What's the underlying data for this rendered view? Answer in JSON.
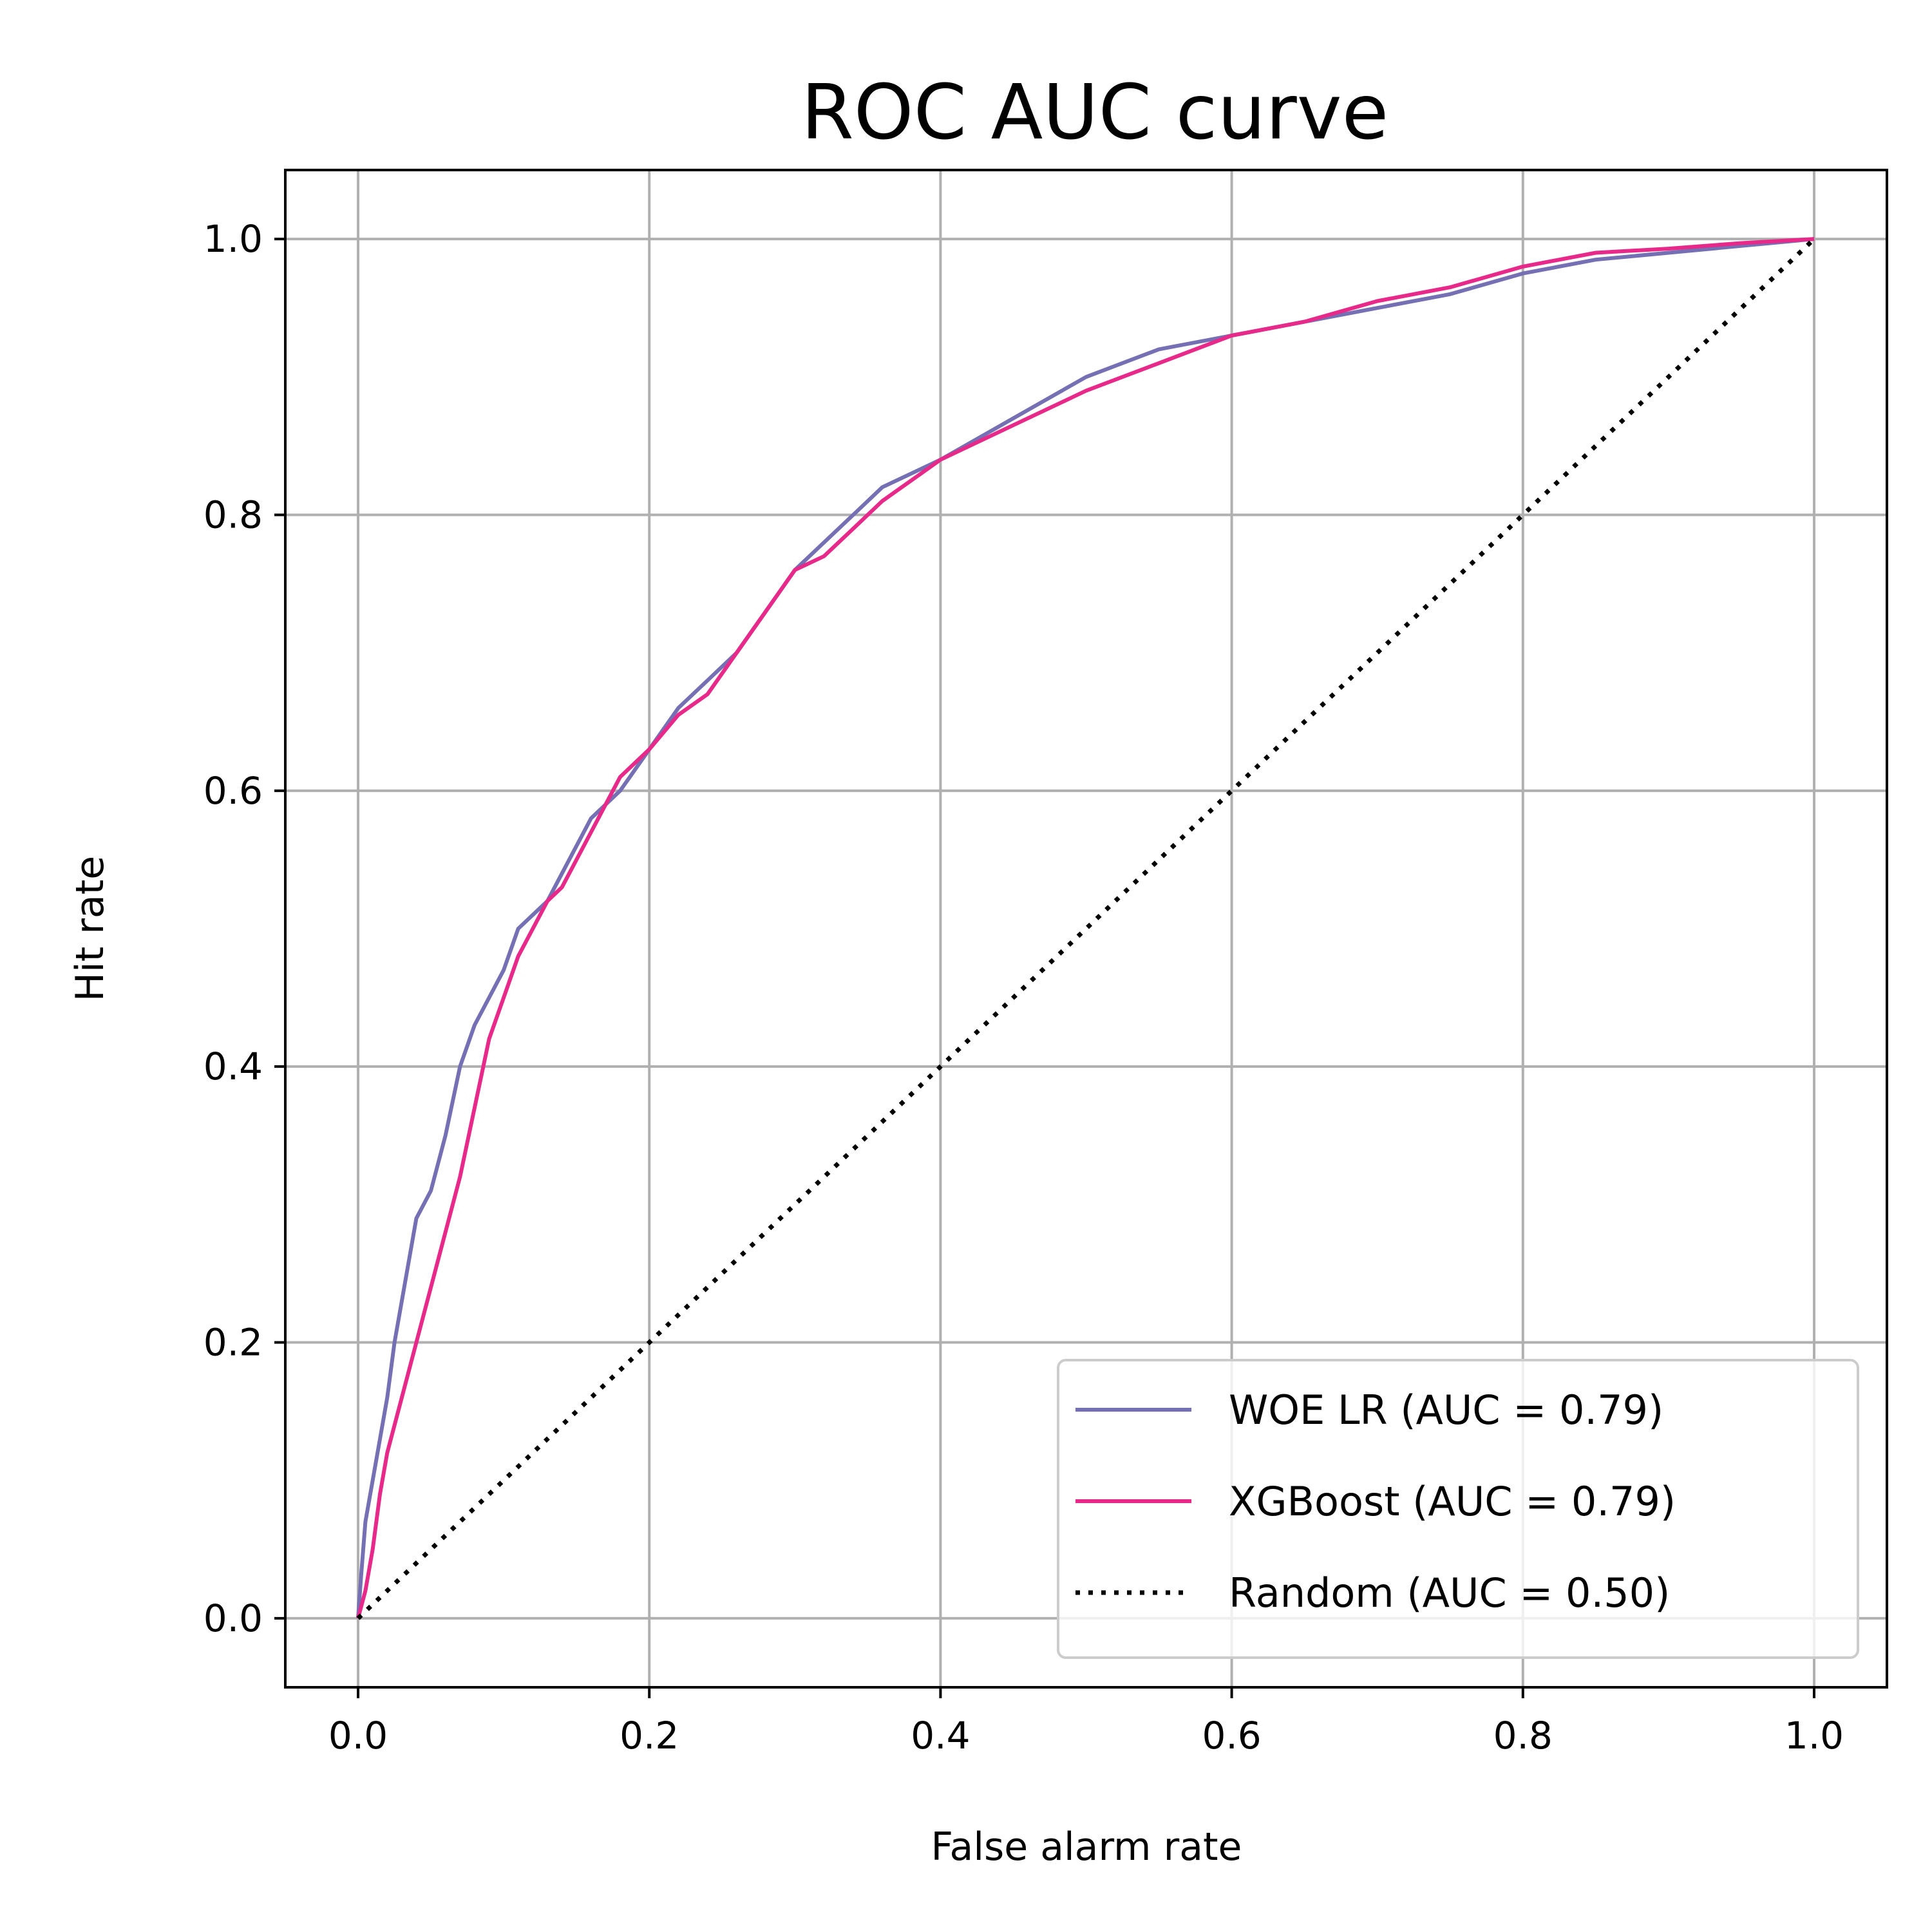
{
  "chart_data": {
    "type": "line",
    "title": "ROC AUC curve",
    "xlabel": "False alarm rate",
    "ylabel": "Hit rate",
    "xlim": [
      -0.05,
      1.05
    ],
    "ylim": [
      -0.05,
      1.05
    ],
    "xticks": [
      "0.0",
      "0.2",
      "0.4",
      "0.6",
      "0.8",
      "1.0"
    ],
    "yticks": [
      "0.0",
      "0.2",
      "0.4",
      "0.6",
      "0.8",
      "1.0"
    ],
    "grid": true,
    "legend_position": "lower-right",
    "series": [
      {
        "name": "WOE LR (AUC = 0.79)",
        "color": "#7570b3",
        "style": "solid",
        "x": [
          0.0,
          0.002,
          0.005,
          0.01,
          0.015,
          0.02,
          0.025,
          0.03,
          0.035,
          0.04,
          0.045,
          0.05,
          0.06,
          0.07,
          0.08,
          0.09,
          0.1,
          0.11,
          0.12,
          0.13,
          0.14,
          0.15,
          0.16,
          0.18,
          0.2,
          0.22,
          0.24,
          0.26,
          0.28,
          0.3,
          0.32,
          0.34,
          0.36,
          0.38,
          0.4,
          0.45,
          0.5,
          0.55,
          0.6,
          0.65,
          0.7,
          0.75,
          0.8,
          0.85,
          0.9,
          0.95,
          1.0
        ],
        "y": [
          0.0,
          0.03,
          0.07,
          0.1,
          0.13,
          0.16,
          0.2,
          0.23,
          0.26,
          0.29,
          0.3,
          0.31,
          0.35,
          0.4,
          0.43,
          0.45,
          0.47,
          0.5,
          0.51,
          0.52,
          0.54,
          0.56,
          0.58,
          0.6,
          0.63,
          0.66,
          0.68,
          0.7,
          0.73,
          0.76,
          0.78,
          0.8,
          0.82,
          0.83,
          0.84,
          0.87,
          0.9,
          0.92,
          0.93,
          0.94,
          0.95,
          0.96,
          0.975,
          0.985,
          0.99,
          0.995,
          1.0
        ]
      },
      {
        "name": "XGBoost (AUC = 0.79)",
        "color": "#e7298a",
        "style": "solid",
        "x": [
          0.0,
          0.005,
          0.01,
          0.015,
          0.02,
          0.03,
          0.04,
          0.05,
          0.06,
          0.07,
          0.08,
          0.09,
          0.1,
          0.11,
          0.12,
          0.13,
          0.14,
          0.15,
          0.16,
          0.17,
          0.18,
          0.2,
          0.22,
          0.24,
          0.26,
          0.28,
          0.3,
          0.32,
          0.34,
          0.36,
          0.38,
          0.4,
          0.45,
          0.5,
          0.55,
          0.6,
          0.65,
          0.7,
          0.75,
          0.8,
          0.85,
          0.9,
          0.95,
          1.0
        ],
        "y": [
          0.0,
          0.02,
          0.05,
          0.09,
          0.12,
          0.16,
          0.2,
          0.24,
          0.28,
          0.32,
          0.37,
          0.42,
          0.45,
          0.48,
          0.5,
          0.52,
          0.53,
          0.55,
          0.57,
          0.59,
          0.61,
          0.63,
          0.655,
          0.67,
          0.7,
          0.73,
          0.76,
          0.77,
          0.79,
          0.81,
          0.825,
          0.84,
          0.865,
          0.89,
          0.91,
          0.93,
          0.94,
          0.955,
          0.965,
          0.98,
          0.99,
          0.993,
          0.997,
          1.0
        ]
      },
      {
        "name": "Random (AUC = 0.50)",
        "color": "#000000",
        "style": "dotted",
        "x": [
          0.0,
          1.0
        ],
        "y": [
          0.0,
          1.0
        ]
      }
    ]
  }
}
